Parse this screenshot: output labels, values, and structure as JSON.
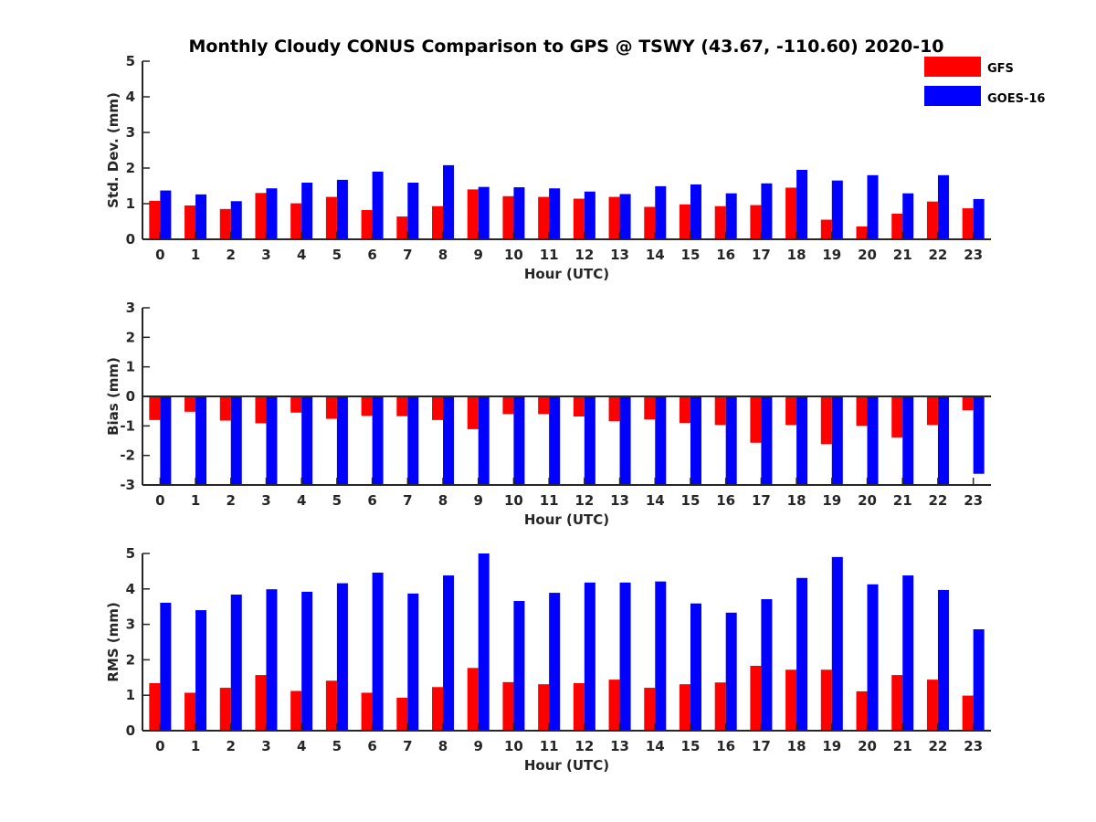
{
  "title": "Monthly Cloudy CONUS Comparison to GPS @ TSWY (43.67, -110.60) 2020-10",
  "colors": {
    "gfs": "#ff0000",
    "goes": "#0000ff",
    "axis": "#262626"
  },
  "legend": [
    {
      "name": "GFS",
      "color": "#ff0000"
    },
    {
      "name": "GOES-16",
      "color": "#0000ff"
    }
  ],
  "chart_data": [
    {
      "type": "bar",
      "title": "Monthly Cloudy CONUS Comparison to GPS @ TSWY (43.67, -110.60) 2020-10",
      "xlabel": "Hour (UTC)",
      "ylabel": "Std. Dev. (mm)",
      "ylim": [
        0,
        5
      ],
      "yticks": [
        "0",
        "1",
        "2",
        "3",
        "4",
        "5"
      ],
      "categories": [
        "0",
        "1",
        "2",
        "3",
        "4",
        "5",
        "6",
        "7",
        "8",
        "9",
        "10",
        "11",
        "12",
        "13",
        "14",
        "15",
        "16",
        "17",
        "18",
        "19",
        "20",
        "21",
        "22",
        "23"
      ],
      "series": [
        {
          "name": "GFS",
          "values": [
            1.08,
            0.95,
            0.85,
            1.3,
            1.01,
            1.19,
            0.82,
            0.64,
            0.93,
            1.4,
            1.21,
            1.19,
            1.14,
            1.19,
            0.91,
            0.98,
            0.93,
            0.96,
            1.45,
            0.55,
            0.36,
            0.72,
            1.06,
            0.87
          ]
        },
        {
          "name": "GOES-16",
          "values": [
            1.37,
            1.26,
            1.07,
            1.43,
            1.59,
            1.67,
            1.9,
            1.59,
            2.08,
            1.47,
            1.46,
            1.43,
            1.34,
            1.27,
            1.49,
            1.54,
            1.29,
            1.57,
            1.95,
            1.65,
            1.8,
            1.29,
            1.8,
            1.13
          ]
        }
      ]
    },
    {
      "type": "bar",
      "xlabel": "Hour (UTC)",
      "ylabel": "Bias (mm)",
      "ylim": [
        -3,
        3
      ],
      "yticks": [
        "-3",
        "-2",
        "-1",
        "0",
        "1",
        "2",
        "3"
      ],
      "categories": [
        "0",
        "1",
        "2",
        "3",
        "4",
        "5",
        "6",
        "7",
        "8",
        "9",
        "10",
        "11",
        "12",
        "13",
        "14",
        "15",
        "16",
        "17",
        "18",
        "19",
        "20",
        "21",
        "22",
        "23"
      ],
      "series": [
        {
          "name": "GFS",
          "values": [
            -0.8,
            -0.52,
            -0.82,
            -0.91,
            -0.55,
            -0.76,
            -0.66,
            -0.67,
            -0.8,
            -1.11,
            -0.6,
            -0.6,
            -0.68,
            -0.84,
            -0.78,
            -0.9,
            -0.97,
            -1.57,
            -0.97,
            -1.62,
            -1.0,
            -1.39,
            -0.97,
            -0.47
          ]
        },
        {
          "name": "GOES-16",
          "values": [
            -3.0,
            -3.0,
            -3.0,
            -3.0,
            -3.0,
            -3.0,
            -3.0,
            -3.0,
            -3.0,
            -3.0,
            -3.0,
            -3.0,
            -3.0,
            -3.0,
            -3.0,
            -3.0,
            -3.0,
            -3.0,
            -3.0,
            -3.0,
            -3.0,
            -3.0,
            -3.0,
            -2.62
          ]
        }
      ]
    },
    {
      "type": "bar",
      "xlabel": "Hour (UTC)",
      "ylabel": "RMS (mm)",
      "ylim": [
        0,
        5
      ],
      "yticks": [
        "0",
        "1",
        "2",
        "3",
        "4",
        "5"
      ],
      "categories": [
        "0",
        "1",
        "2",
        "3",
        "4",
        "5",
        "6",
        "7",
        "8",
        "9",
        "10",
        "11",
        "12",
        "13",
        "14",
        "15",
        "16",
        "17",
        "18",
        "19",
        "20",
        "21",
        "22",
        "23"
      ],
      "series": [
        {
          "name": "GFS",
          "values": [
            1.34,
            1.07,
            1.21,
            1.57,
            1.12,
            1.41,
            1.07,
            0.93,
            1.23,
            1.77,
            1.37,
            1.31,
            1.34,
            1.44,
            1.21,
            1.31,
            1.36,
            1.83,
            1.72,
            1.72,
            1.11,
            1.57,
            1.44,
            0.99
          ]
        },
        {
          "name": "GOES-16",
          "values": [
            3.61,
            3.4,
            3.84,
            3.99,
            3.92,
            4.16,
            4.46,
            3.87,
            4.38,
            5.0,
            3.66,
            3.89,
            4.18,
            4.18,
            4.21,
            3.59,
            3.33,
            3.71,
            4.31,
            4.9,
            4.13,
            4.38,
            3.97,
            2.86
          ]
        }
      ]
    }
  ]
}
